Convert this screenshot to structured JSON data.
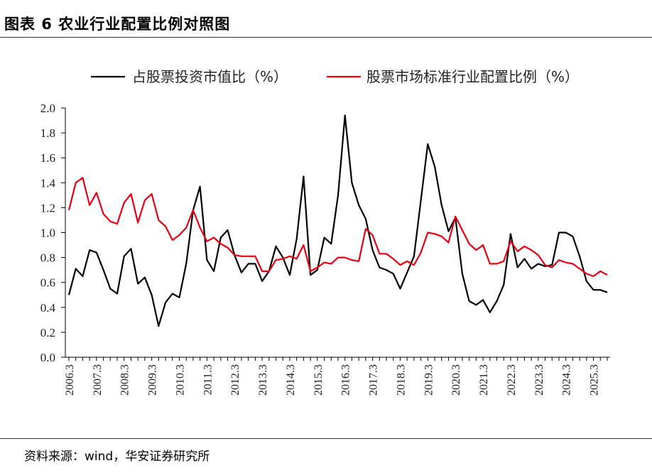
{
  "header": {
    "title": "图表 6 农业行业配置比例对照图"
  },
  "footer": {
    "source": "资料来源：wind，华安证券研究所"
  },
  "chart_data": {
    "type": "line",
    "title": "图表 6 农业行业配置比例对照图",
    "xlabel": "",
    "ylabel": "",
    "ylim": [
      0,
      2.0
    ],
    "yticks": [
      "0.0",
      "0.2",
      "0.4",
      "0.6",
      "0.8",
      "1.0",
      "1.2",
      "1.4",
      "1.6",
      "1.8",
      "2.0"
    ],
    "legend_position": "top",
    "xtick_labels": [
      "2006.3",
      "2007.3",
      "2008.3",
      "2009.3",
      "2010.3",
      "2011.3",
      "2012.3",
      "2013.3",
      "2014.3",
      "2015.3",
      "2016.3",
      "2017.3",
      "2018.3",
      "2019.3",
      "2020.3",
      "2021.3",
      "2022.3",
      "2023.3",
      "2024.3",
      "2025.3"
    ],
    "series": [
      {
        "name": "占股票投资市值比（%）",
        "color": "#000000",
        "values": [
          0.5,
          0.71,
          0.65,
          0.86,
          0.84,
          0.7,
          0.55,
          0.51,
          0.81,
          0.87,
          0.59,
          0.64,
          0.5,
          0.25,
          0.44,
          0.51,
          0.48,
          0.75,
          1.18,
          1.37,
          0.78,
          0.69,
          0.96,
          1.02,
          0.82,
          0.68,
          0.75,
          0.75,
          0.61,
          0.69,
          0.89,
          0.8,
          0.66,
          0.95,
          1.45,
          0.66,
          0.7,
          0.96,
          0.91,
          1.3,
          1.94,
          1.4,
          1.22,
          1.11,
          0.86,
          0.72,
          0.7,
          0.67,
          0.55,
          0.68,
          0.81,
          1.26,
          1.71,
          1.53,
          1.22,
          1.01,
          1.12,
          0.67,
          0.45,
          0.42,
          0.46,
          0.36,
          0.45,
          0.58,
          0.99,
          0.72,
          0.79,
          0.71,
          0.75,
          0.73,
          0.74,
          1.0,
          1.0,
          0.97,
          0.81,
          0.61,
          0.54,
          0.54,
          0.52
        ]
      },
      {
        "name": "股票市场标准行业配置比例（%）",
        "color": "#e60012",
        "values": [
          1.18,
          1.4,
          1.44,
          1.22,
          1.32,
          1.15,
          1.09,
          1.07,
          1.24,
          1.31,
          1.08,
          1.26,
          1.31,
          1.1,
          1.05,
          0.94,
          0.98,
          1.04,
          1.18,
          1.04,
          0.93,
          0.96,
          0.91,
          0.88,
          0.82,
          0.81,
          0.81,
          0.81,
          0.69,
          0.69,
          0.78,
          0.79,
          0.81,
          0.79,
          0.9,
          0.69,
          0.72,
          0.76,
          0.75,
          0.8,
          0.8,
          0.78,
          0.77,
          1.03,
          0.98,
          0.83,
          0.83,
          0.79,
          0.74,
          0.77,
          0.74,
          0.84,
          1.0,
          0.99,
          0.97,
          0.92,
          1.13,
          1.02,
          0.91,
          0.86,
          0.9,
          0.75,
          0.75,
          0.77,
          0.93,
          0.85,
          0.89,
          0.86,
          0.82,
          0.74,
          0.72,
          0.78,
          0.76,
          0.75,
          0.71,
          0.67,
          0.65,
          0.69,
          0.66
        ]
      }
    ]
  }
}
